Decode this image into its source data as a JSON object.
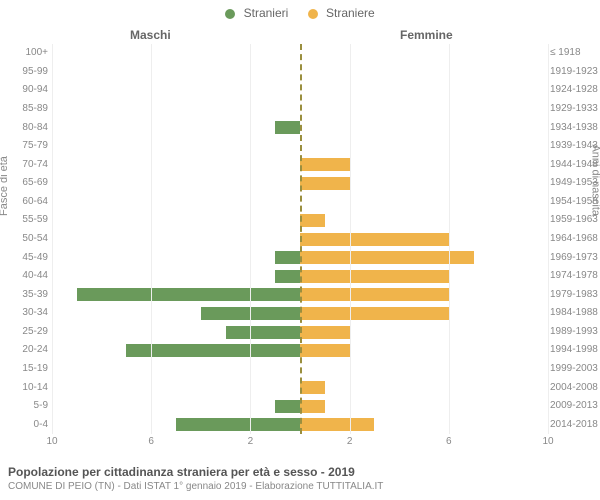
{
  "legend": {
    "m": "Stranieri",
    "f": "Straniere"
  },
  "cols": {
    "m": "Maschi",
    "f": "Femmine"
  },
  "axes": {
    "left": "Fasce di età",
    "right": "Anni di nascita"
  },
  "colors": {
    "m": "#6a9a5b",
    "f": "#f0b44b",
    "grid": "#eeeeee",
    "center": "#9a8f3f",
    "text": "#888888",
    "bg": "#ffffff"
  },
  "xmax": 10,
  "xticks": [
    10,
    6,
    2,
    2,
    6,
    10
  ],
  "title": "Popolazione per cittadinanza straniera per età e sesso - 2019",
  "subtitle": "COMUNE DI PEIO (TN) - Dati ISTAT 1° gennaio 2019 - Elaborazione TUTTITALIA.IT",
  "rows": [
    {
      "age": "100+",
      "birth": "≤ 1918",
      "m": 0,
      "f": 0
    },
    {
      "age": "95-99",
      "birth": "1919-1923",
      "m": 0,
      "f": 0
    },
    {
      "age": "90-94",
      "birth": "1924-1928",
      "m": 0,
      "f": 0
    },
    {
      "age": "85-89",
      "birth": "1929-1933",
      "m": 0,
      "f": 0
    },
    {
      "age": "80-84",
      "birth": "1934-1938",
      "m": 1,
      "f": 0
    },
    {
      "age": "75-79",
      "birth": "1939-1943",
      "m": 0,
      "f": 0
    },
    {
      "age": "70-74",
      "birth": "1944-1948",
      "m": 0,
      "f": 2
    },
    {
      "age": "65-69",
      "birth": "1949-1953",
      "m": 0,
      "f": 2
    },
    {
      "age": "60-64",
      "birth": "1954-1958",
      "m": 0,
      "f": 0
    },
    {
      "age": "55-59",
      "birth": "1959-1963",
      "m": 0,
      "f": 1
    },
    {
      "age": "50-54",
      "birth": "1964-1968",
      "m": 0,
      "f": 6
    },
    {
      "age": "45-49",
      "birth": "1969-1973",
      "m": 1,
      "f": 7
    },
    {
      "age": "40-44",
      "birth": "1974-1978",
      "m": 1,
      "f": 6
    },
    {
      "age": "35-39",
      "birth": "1979-1983",
      "m": 9,
      "f": 6
    },
    {
      "age": "30-34",
      "birth": "1984-1988",
      "m": 4,
      "f": 6
    },
    {
      "age": "25-29",
      "birth": "1989-1993",
      "m": 3,
      "f": 2
    },
    {
      "age": "20-24",
      "birth": "1994-1998",
      "m": 7,
      "f": 2
    },
    {
      "age": "15-19",
      "birth": "1999-2003",
      "m": 0,
      "f": 0
    },
    {
      "age": "10-14",
      "birth": "2004-2008",
      "m": 0,
      "f": 1
    },
    {
      "age": "5-9",
      "birth": "2009-2013",
      "m": 1,
      "f": 1
    },
    {
      "age": "0-4",
      "birth": "2014-2018",
      "m": 5,
      "f": 3
    }
  ]
}
